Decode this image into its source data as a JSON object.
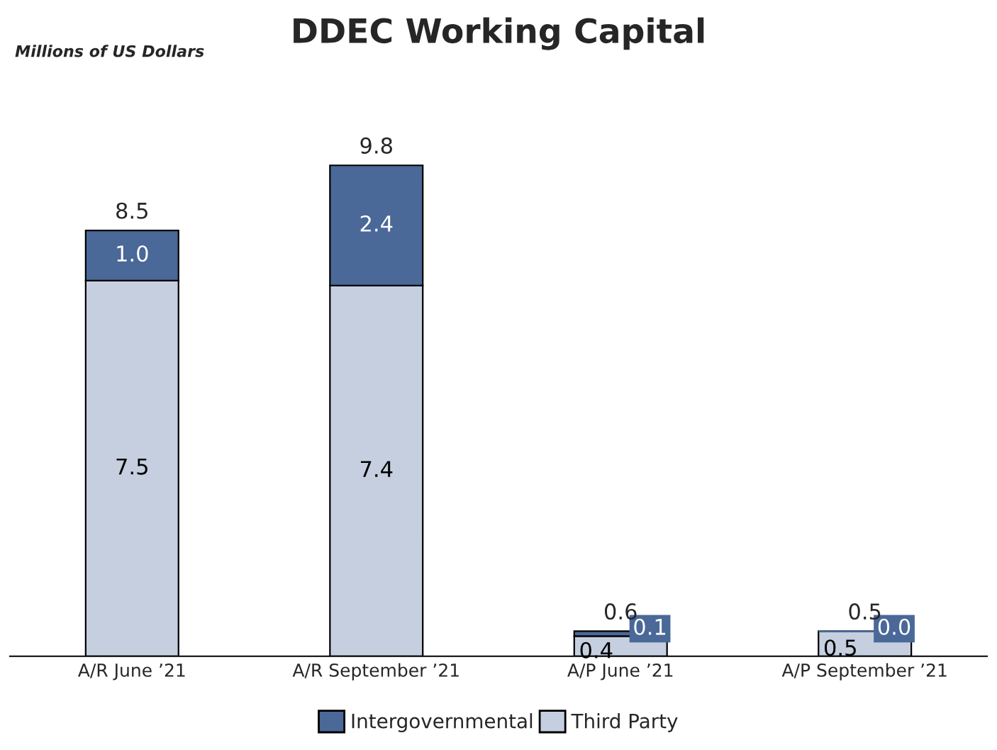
{
  "chart_data": {
    "type": "bar",
    "title": "DDEC Working Capital",
    "subtitle": "Millions of US Dollars",
    "categories": [
      "A/R June ’21",
      "A/R September ’21",
      "A/P June ’21",
      "A/P September ’21"
    ],
    "stacked": true,
    "series": [
      {
        "name": "Third Party",
        "color": "#c5cfe0",
        "values": [
          7.5,
          7.4,
          0.4,
          0.5
        ],
        "value_labels": [
          "7.5",
          "7.4",
          "0.4",
          "0.5"
        ]
      },
      {
        "name": "Intergovernmental",
        "color": "#4a6898",
        "values": [
          1.0,
          2.4,
          0.1,
          0.0
        ],
        "value_labels": [
          "1.0",
          "2.4",
          "0.1",
          "0.0"
        ]
      }
    ],
    "totals": [
      "8.5",
      "9.8",
      "0.6",
      "0.5"
    ],
    "legend": "bottom",
    "grid": false,
    "tick_labels": "x"
  }
}
